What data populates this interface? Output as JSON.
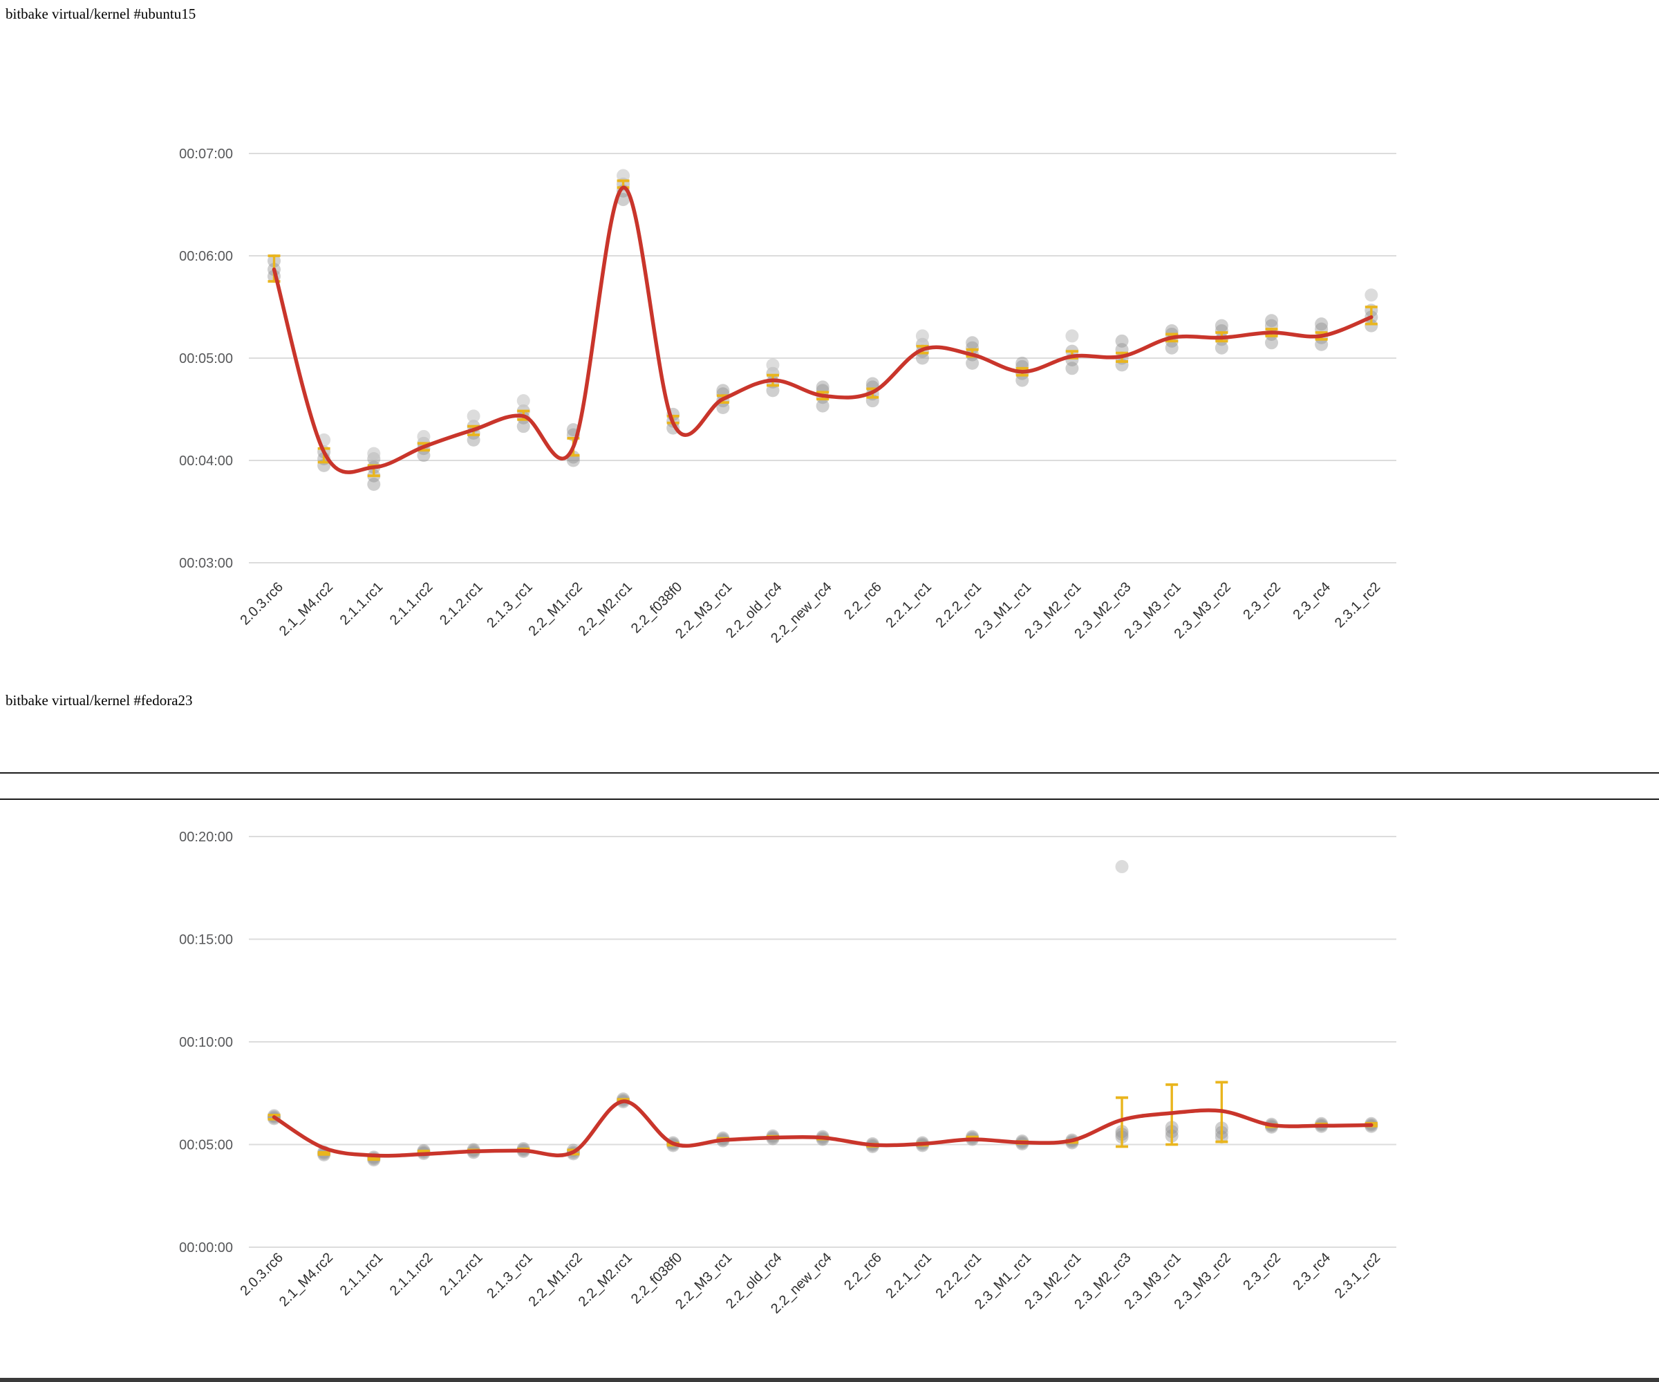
{
  "page": {
    "background_color": "#ffffff"
  },
  "colors": {
    "trend_line": "#c9352b",
    "error_bar": "#e9b51e",
    "dot": "#8c8c8c",
    "dot_light": "#c4c4c4",
    "gridline": "#dcdcdc",
    "y_label_color": "#57585a",
    "x_label_color": "#2e2e2e",
    "divider_color": "#1b1b1b",
    "bottom_bar_color": "#3a3a3a"
  },
  "chart_data": [
    {
      "type": "line",
      "title": "bitbake virtual/kernel #ubuntu15",
      "xlabel": "",
      "ylabel": "",
      "legend": "none",
      "grid": "horizontal-only",
      "y_axis": {
        "min_sec": 180,
        "max_sec": 420,
        "tick_step_sec": 60,
        "ticks": [
          {
            "label": "00:07:00",
            "sec": 420
          },
          {
            "label": "00:06:00",
            "sec": 360
          },
          {
            "label": "00:05:00",
            "sec": 300
          },
          {
            "label": "00:04:00",
            "sec": 240
          },
          {
            "label": "00:03:00",
            "sec": 180
          }
        ]
      },
      "x_categories": [
        "2.0.3.rc6",
        "2.1_M4.rc2",
        "2.1.1.rc1",
        "2.1.1.rc2",
        "2.1.2.rc1",
        "2.1.3_rc1",
        "2.2_M1.rc2",
        "2.2_M2.rc1",
        "2.2_f038f0",
        "2.2_M3_rc1",
        "2.2_old_rc4",
        "2.2_new_rc4",
        "2.2_rc6",
        "2.2.1_rc1",
        "2.2.2_rc1",
        "2.3_M1_rc1",
        "2.3_M2_rc1",
        "2.3_M2_rc3",
        "2.3_M3_rc1",
        "2.3_M3_rc2",
        "2.3_rc2",
        "2.3_rc4",
        "2.3.1_rc2"
      ],
      "points": [
        {
          "label": "2.0.3.rc6",
          "mean_sec": 353,
          "err_sec": [
            345,
            360
          ],
          "dots_sec": [
            348,
            352,
            357
          ],
          "outliers_sec": []
        },
        {
          "label": "2.1_M4.rc2",
          "mean_sec": 243,
          "err_sec": [
            239,
            247
          ],
          "dots_sec": [
            237,
            241,
            245
          ],
          "outliers_sec": [
            252
          ]
        },
        {
          "label": "2.1.1.rc1",
          "mean_sec": 234,
          "err_sec": [
            231,
            237
          ],
          "dots_sec": [
            226,
            231,
            236,
            241
          ],
          "outliers_sec": [
            244
          ]
        },
        {
          "label": "2.1.1.rc2",
          "mean_sec": 248,
          "err_sec": [
            246,
            250
          ],
          "dots_sec": [
            243,
            247,
            250
          ],
          "outliers_sec": [
            254
          ]
        },
        {
          "label": "2.1.2.rc1",
          "mean_sec": 258,
          "err_sec": [
            255,
            260
          ],
          "dots_sec": [
            252,
            256,
            260
          ],
          "outliers_sec": [
            266
          ]
        },
        {
          "label": "2.1.3_rc1",
          "mean_sec": 267,
          "err_sec": [
            264,
            269
          ],
          "dots_sec": [
            260,
            265,
            269
          ],
          "outliers_sec": [
            275
          ]
        },
        {
          "label": "2.2_M1.rc2",
          "mean_sec": 248,
          "err_sec": [
            243,
            253
          ],
          "dots_sec": [
            240,
            242,
            255,
            258
          ],
          "outliers_sec": []
        },
        {
          "label": "2.2_M2.rc1",
          "mean_sec": 402,
          "err_sec": [
            400,
            404
          ],
          "dots_sec": [
            393,
            398,
            402
          ],
          "outliers_sec": [
            407
          ]
        },
        {
          "label": "2.2_f038f0",
          "mean_sec": 264,
          "err_sec": [
            262,
            266
          ],
          "dots_sec": [
            259,
            263,
            267
          ],
          "outliers_sec": []
        },
        {
          "label": "2.2_M3_rc1",
          "mean_sec": 276,
          "err_sec": [
            274,
            278
          ],
          "dots_sec": [
            271,
            275,
            279,
            281
          ],
          "outliers_sec": []
        },
        {
          "label": "2.2_old_rc4",
          "mean_sec": 287,
          "err_sec": [
            284,
            290
          ],
          "dots_sec": [
            281,
            286,
            291
          ],
          "outliers_sec": [
            296
          ]
        },
        {
          "label": "2.2_new_rc4",
          "mean_sec": 278,
          "err_sec": [
            276,
            280
          ],
          "dots_sec": [
            272,
            277,
            281,
            283
          ],
          "outliers_sec": []
        },
        {
          "label": "2.2_rc6",
          "mean_sec": 280,
          "err_sec": [
            277,
            282
          ],
          "dots_sec": [
            275,
            279,
            283,
            285
          ],
          "outliers_sec": []
        },
        {
          "label": "2.2.1_rc1",
          "mean_sec": 305,
          "err_sec": [
            303,
            307
          ],
          "dots_sec": [
            300,
            304,
            308
          ],
          "outliers_sec": [
            313
          ]
        },
        {
          "label": "2.2.2_rc1",
          "mean_sec": 303,
          "err_sec": [
            301,
            305
          ],
          "dots_sec": [
            297,
            302,
            306,
            309
          ],
          "outliers_sec": []
        },
        {
          "label": "2.3_M1_rc1",
          "mean_sec": 292,
          "err_sec": [
            290,
            294
          ],
          "dots_sec": [
            287,
            291,
            295,
            297
          ],
          "outliers_sec": []
        },
        {
          "label": "2.3_M2_rc1",
          "mean_sec": 302,
          "err_sec": [
            300,
            304
          ],
          "dots_sec": [
            294,
            299,
            304
          ],
          "outliers_sec": [
            313
          ]
        },
        {
          "label": "2.3_M2_rc3",
          "mean_sec": 301,
          "err_sec": [
            298,
            303
          ],
          "dots_sec": [
            296,
            300,
            305,
            310
          ],
          "outliers_sec": []
        },
        {
          "label": "2.3_M3_rc1",
          "mean_sec": 312,
          "err_sec": [
            310,
            314
          ],
          "dots_sec": [
            306,
            310,
            314,
            316
          ],
          "outliers_sec": []
        },
        {
          "label": "2.3_M3_rc2",
          "mean_sec": 312,
          "err_sec": [
            310,
            315
          ],
          "dots_sec": [
            306,
            311,
            316,
            319
          ],
          "outliers_sec": []
        },
        {
          "label": "2.3_rc2",
          "mean_sec": 315,
          "err_sec": [
            313,
            317
          ],
          "dots_sec": [
            309,
            314,
            319,
            322
          ],
          "outliers_sec": []
        },
        {
          "label": "2.3_rc4",
          "mean_sec": 313,
          "err_sec": [
            311,
            315
          ],
          "dots_sec": [
            308,
            312,
            317,
            320
          ],
          "outliers_sec": []
        },
        {
          "label": "2.3.1_rc2",
          "mean_sec": 325,
          "err_sec": [
            320,
            330
          ],
          "dots_sec": [
            319,
            324,
            328
          ],
          "outliers_sec": [
            337
          ]
        }
      ],
      "trend_sec": [
        352,
        245,
        236,
        248,
        258,
        266,
        248,
        400,
        262,
        276,
        287,
        278,
        280,
        305,
        302,
        292,
        301,
        301,
        312,
        312,
        315,
        313,
        324
      ]
    },
    {
      "type": "line",
      "title": "bitbake virtual/kernel #fedora23",
      "xlabel": "",
      "ylabel": "",
      "legend": "none",
      "grid": "horizontal-only",
      "y_axis": {
        "min_sec": 0,
        "max_sec": 1200,
        "tick_step_sec": 300,
        "ticks": [
          {
            "label": "00:20:00",
            "sec": 1200
          },
          {
            "label": "00:15:00",
            "sec": 900
          },
          {
            "label": "00:10:00",
            "sec": 600
          },
          {
            "label": "00:05:00",
            "sec": 300
          },
          {
            "label": "00:00:00",
            "sec": 0
          }
        ]
      },
      "x_categories": [
        "2.0.3.rc6",
        "2.1_M4.rc2",
        "2.1.1.rc1",
        "2.1.1.rc2",
        "2.1.2.rc1",
        "2.1.3_rc1",
        "2.2_M1.rc2",
        "2.2_M2.rc1",
        "2.2_f038f0",
        "2.2_M3_rc1",
        "2.2_old_rc4",
        "2.2_new_rc4",
        "2.2_rc6",
        "2.2.1_rc1",
        "2.2.2_rc1",
        "2.3_M1_rc1",
        "2.3_M2_rc1",
        "2.3_M2_rc3",
        "2.3_M3_rc1",
        "2.3_M3_rc2",
        "2.3_rc2",
        "2.3_rc4",
        "2.3.1_rc2"
      ],
      "points": [
        {
          "label": "2.0.3.rc6",
          "mean_sec": 380,
          "err_sec": [
            374,
            386
          ],
          "dots_sec": [
            376,
            380,
            384
          ],
          "outliers_sec": []
        },
        {
          "label": "2.1_M4.rc2",
          "mean_sec": 274,
          "err_sec": [
            271,
            277
          ],
          "dots_sec": [
            270,
            274,
            278
          ],
          "outliers_sec": []
        },
        {
          "label": "2.1.1.rc1",
          "mean_sec": 259,
          "err_sec": [
            256,
            262
          ],
          "dots_sec": [
            255,
            259,
            263
          ],
          "outliers_sec": []
        },
        {
          "label": "2.1.1.rc2",
          "mean_sec": 278,
          "err_sec": [
            275,
            281
          ],
          "dots_sec": [
            274,
            278,
            282
          ],
          "outliers_sec": []
        },
        {
          "label": "2.1.2.rc1",
          "mean_sec": 281,
          "err_sec": [
            278,
            284
          ],
          "dots_sec": [
            277,
            281,
            285
          ],
          "outliers_sec": []
        },
        {
          "label": "2.1.3_rc1",
          "mean_sec": 284,
          "err_sec": [
            281,
            287
          ],
          "dots_sec": [
            280,
            284,
            288
          ],
          "outliers_sec": []
        },
        {
          "label": "2.2_M1.rc2",
          "mean_sec": 278,
          "err_sec": [
            272,
            284
          ],
          "dots_sec": [
            273,
            277,
            283
          ],
          "outliers_sec": []
        },
        {
          "label": "2.2_M2.rc1",
          "mean_sec": 429,
          "err_sec": [
            426,
            432
          ],
          "dots_sec": [
            425,
            429,
            433
          ],
          "outliers_sec": []
        },
        {
          "label": "2.2_f038f0",
          "mean_sec": 301,
          "err_sec": [
            298,
            304
          ],
          "dots_sec": [
            297,
            301,
            305
          ],
          "outliers_sec": []
        },
        {
          "label": "2.2_M3_rc1",
          "mean_sec": 315,
          "err_sec": [
            312,
            318
          ],
          "dots_sec": [
            311,
            315,
            319
          ],
          "outliers_sec": []
        },
        {
          "label": "2.2_old_rc4",
          "mean_sec": 321,
          "err_sec": [
            318,
            324
          ],
          "dots_sec": [
            317,
            321,
            325
          ],
          "outliers_sec": []
        },
        {
          "label": "2.2_new_rc4",
          "mean_sec": 319,
          "err_sec": [
            316,
            322
          ],
          "dots_sec": [
            315,
            319,
            323
          ],
          "outliers_sec": []
        },
        {
          "label": "2.2_rc6",
          "mean_sec": 298,
          "err_sec": [
            295,
            301
          ],
          "dots_sec": [
            294,
            298,
            302
          ],
          "outliers_sec": []
        },
        {
          "label": "2.2.1_rc1",
          "mean_sec": 301,
          "err_sec": [
            298,
            304
          ],
          "dots_sec": [
            297,
            301,
            305
          ],
          "outliers_sec": []
        },
        {
          "label": "2.2.2_rc1",
          "mean_sec": 319,
          "err_sec": [
            316,
            322
          ],
          "dots_sec": [
            315,
            319,
            323
          ],
          "outliers_sec": []
        },
        {
          "label": "2.3_M1_rc1",
          "mean_sec": 306,
          "err_sec": [
            303,
            309
          ],
          "dots_sec": [
            302,
            306,
            310
          ],
          "outliers_sec": []
        },
        {
          "label": "2.3_M2_rc1",
          "mean_sec": 309,
          "err_sec": [
            306,
            312
          ],
          "dots_sec": [
            305,
            309,
            313
          ],
          "outliers_sec": []
        },
        {
          "label": "2.3_M2_rc3",
          "mean_sec": 332,
          "err_sec": [
            294,
            437
          ],
          "dots_sec": [
            322,
            330,
            338
          ],
          "outliers_sec": [
            1112
          ]
        },
        {
          "label": "2.3_M3_rc1",
          "mean_sec": 342,
          "err_sec": [
            300,
            475
          ],
          "dots_sec": [
            325,
            338,
            350
          ],
          "outliers_sec": []
        },
        {
          "label": "2.3_M3_rc2",
          "mean_sec": 338,
          "err_sec": [
            308,
            482
          ],
          "dots_sec": [
            322,
            335,
            348
          ],
          "outliers_sec": []
        },
        {
          "label": "2.3_rc2",
          "mean_sec": 355,
          "err_sec": [
            352,
            358
          ],
          "dots_sec": [
            351,
            355,
            359
          ],
          "outliers_sec": []
        },
        {
          "label": "2.3_rc4",
          "mean_sec": 357,
          "err_sec": [
            354,
            360
          ],
          "dots_sec": [
            353,
            357,
            361
          ],
          "outliers_sec": []
        },
        {
          "label": "2.3.1_rc2",
          "mean_sec": 358,
          "err_sec": [
            354,
            362
          ],
          "dots_sec": [
            353,
            357,
            361
          ],
          "outliers_sec": []
        }
      ],
      "trend_sec": [
        380,
        290,
        268,
        272,
        280,
        282,
        278,
        426,
        303,
        313,
        320,
        320,
        299,
        302,
        315,
        306,
        312,
        372,
        392,
        398,
        357,
        355,
        357
      ]
    }
  ]
}
